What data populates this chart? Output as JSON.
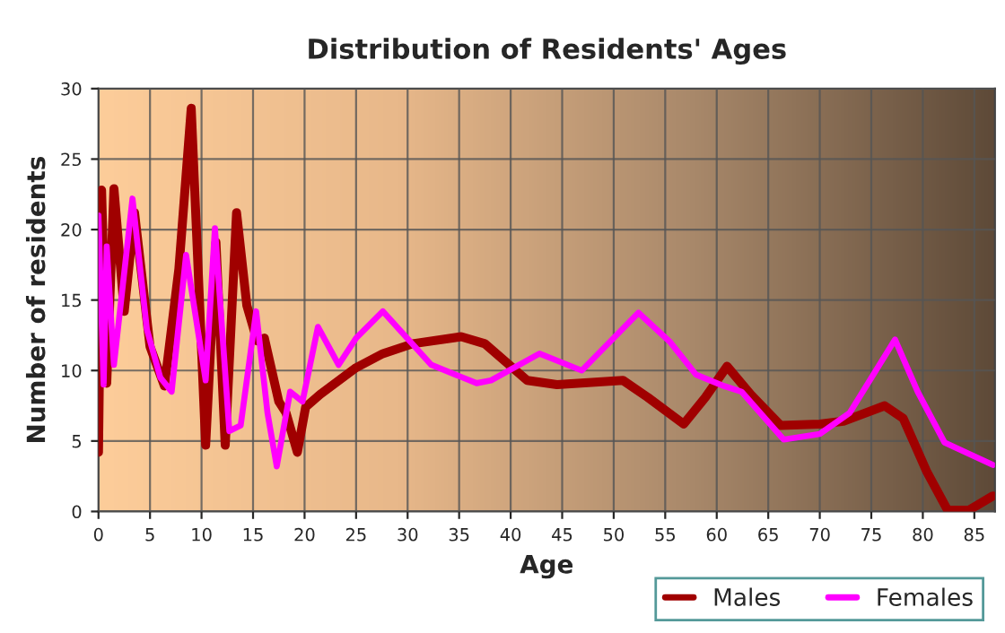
{
  "chart_data": {
    "type": "line",
    "title": "Distribution of Residents' Ages",
    "xlabel": "Age",
    "ylabel": "Number of residents",
    "xlim": [
      0,
      87
    ],
    "xticks": [
      0,
      5,
      10,
      15,
      20,
      25,
      30,
      35,
      40,
      45,
      50,
      55,
      60,
      65,
      70,
      75,
      80,
      85
    ],
    "ylim": [
      0,
      30
    ],
    "yticks": [
      0,
      5,
      10,
      15,
      20,
      25,
      30
    ],
    "grid": true,
    "legend": "bottom right",
    "line_style": "solid",
    "series": [
      {
        "name": "Males",
        "color": "#a00000",
        "x": [
          0,
          0.3,
          0.8,
          1.5,
          2.5,
          3.5,
          5,
          6.4,
          7.8,
          9.0,
          10.4,
          11.4,
          12.3,
          13.4,
          14.4,
          15.4,
          16.1,
          17.5,
          18.2,
          19.3,
          20.1,
          21.5,
          25,
          27.6,
          30.5,
          35.2,
          37.5,
          41.6,
          44.5,
          50.9,
          53.3,
          56.8,
          58.9,
          61,
          63.3,
          66.2,
          70,
          72.3,
          76.3,
          78.1,
          80.4,
          82.4,
          84.5,
          86.8
        ],
        "values": [
          4.2,
          22.8,
          9.1,
          22.9,
          14.2,
          21.2,
          11.7,
          8.9,
          17.2,
          28.6,
          4.7,
          19.1,
          4.7,
          21.2,
          14.6,
          12.1,
          12.3,
          7.8,
          7.0,
          4.2,
          7.4,
          8.3,
          10.2,
          11.2,
          11.9,
          12.4,
          11.9,
          9.3,
          9.0,
          9.3,
          8.1,
          6.2,
          8.1,
          10.3,
          8.3,
          6.1,
          6.2,
          6.4,
          7.5,
          6.6,
          2.8,
          0.1,
          0.1,
          1.1
        ]
      },
      {
        "name": "Females",
        "color": "#ff00ff",
        "x": [
          0,
          0.5,
          0.8,
          1.5,
          3.3,
          4.7,
          6,
          7.1,
          8.5,
          10.4,
          11.3,
          12.7,
          13.8,
          15.3,
          16.4,
          17.3,
          18.6,
          19.8,
          21.3,
          23.3,
          25,
          27.6,
          32.3,
          36.7,
          38.1,
          42.8,
          46.9,
          52.4,
          55.5,
          58,
          60.7,
          62.4,
          66.5,
          70,
          72.9,
          77.3,
          79.5,
          82.1,
          86.8
        ],
        "values": [
          21,
          9,
          18.8,
          10.4,
          22.2,
          12.9,
          9.5,
          8.5,
          18.2,
          9.3,
          20.1,
          5.7,
          6.1,
          14.2,
          7.0,
          3.2,
          8.5,
          7.8,
          13.1,
          10.4,
          12.3,
          14.2,
          10.4,
          9.1,
          9.3,
          11.2,
          10.0,
          14.1,
          12,
          9.7,
          8.9,
          8.5,
          5.1,
          5.5,
          7.0,
          12.2,
          8.5,
          4.9,
          3.3
        ]
      }
    ]
  }
}
